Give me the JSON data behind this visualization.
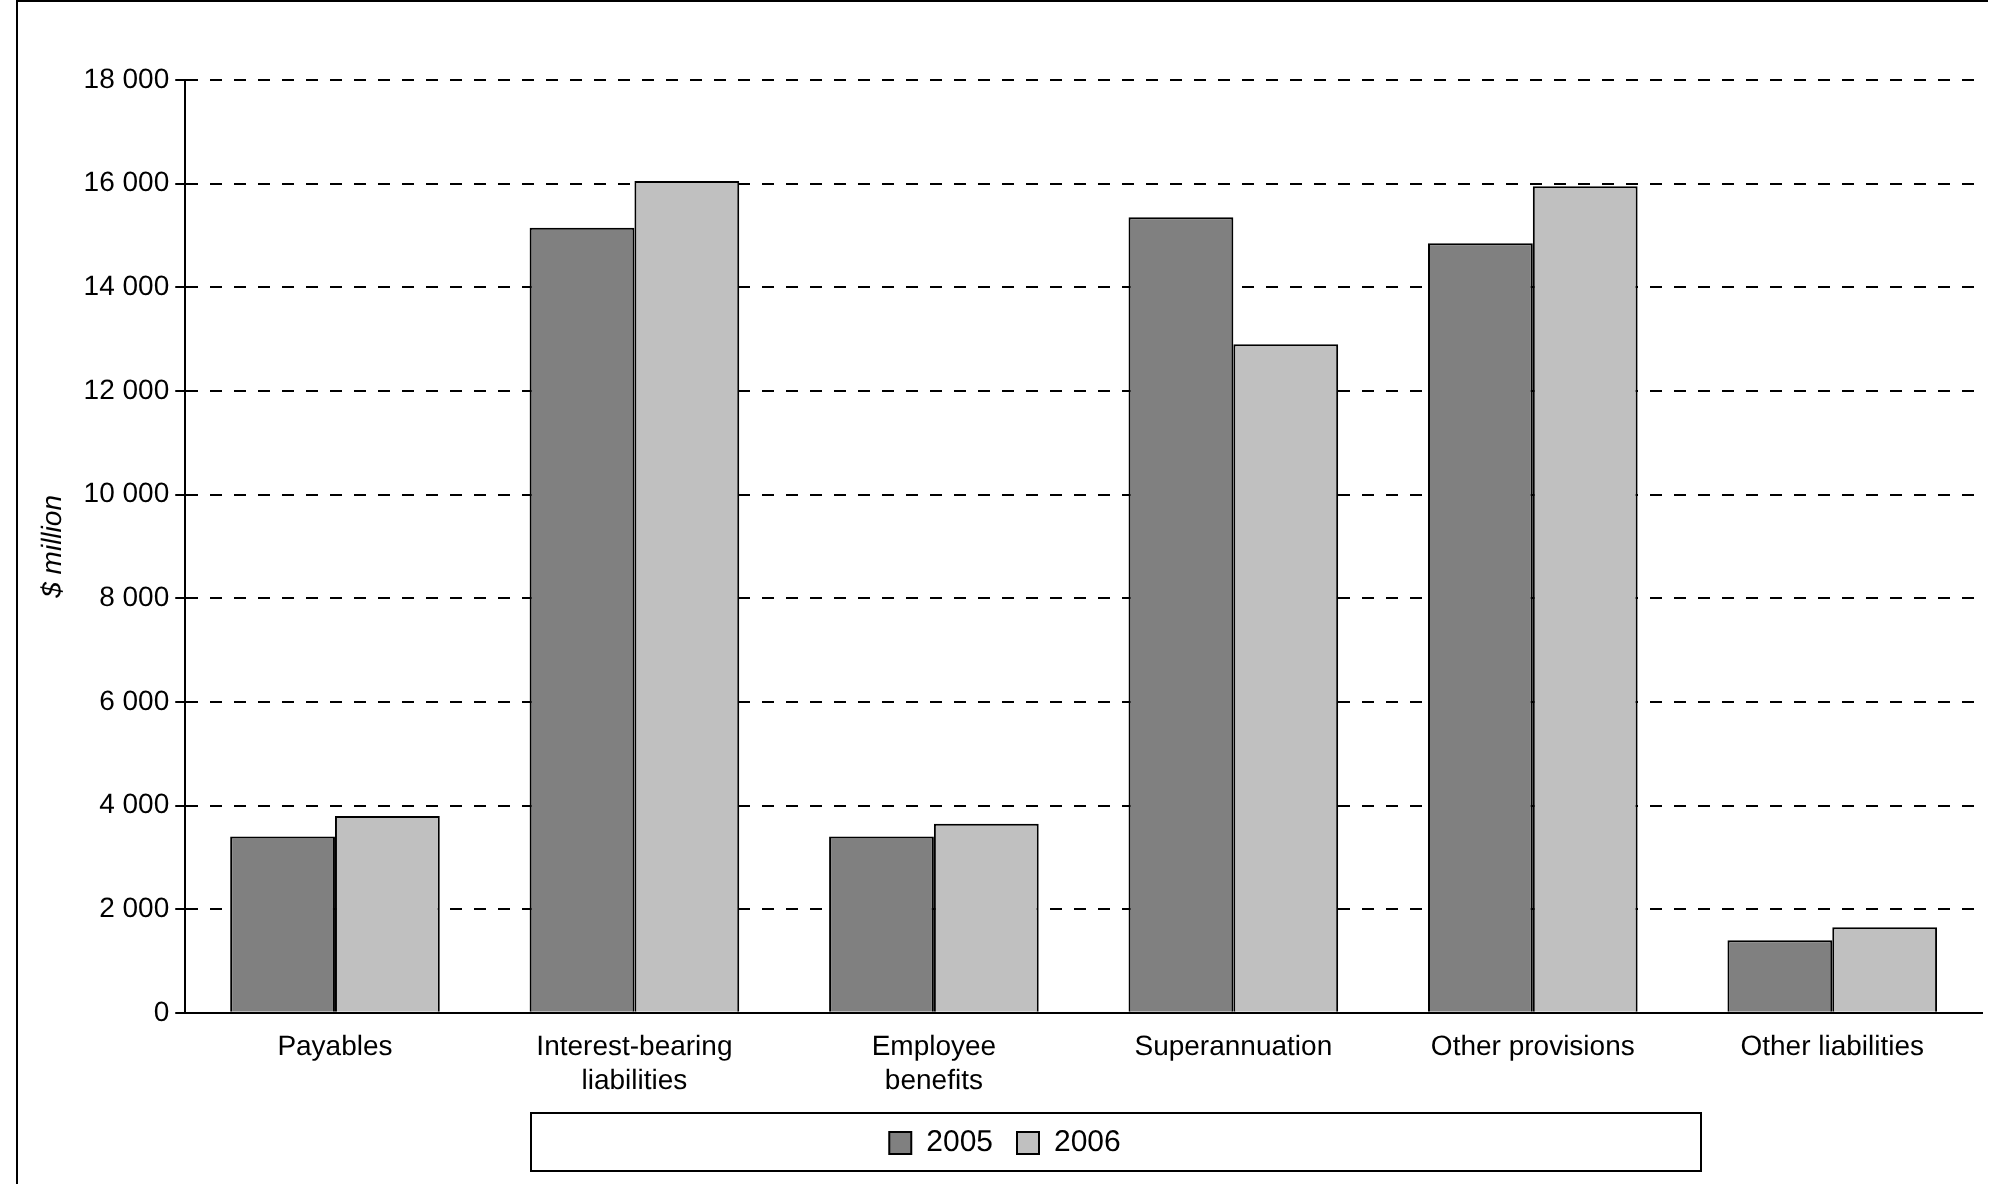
{
  "chart_data": {
    "type": "bar",
    "ylabel": "$ million",
    "categories": [
      "Payables",
      "Interest-bearing liabilities",
      "Employee benefits",
      "Superannuation",
      "Other provisions",
      "Other liabilities"
    ],
    "series": [
      {
        "name": "2005",
        "color": "#808080",
        "values": [
          3400,
          15150,
          3400,
          15350,
          14850,
          1400
        ]
      },
      {
        "name": "2006",
        "color": "#c0c0c0",
        "values": [
          3800,
          16050,
          3650,
          12900,
          15950,
          1650
        ]
      }
    ],
    "ylim": [
      0,
      18000
    ],
    "yticks": [
      {
        "value": 0,
        "label": "0"
      },
      {
        "value": 2000,
        "label": "2 000"
      },
      {
        "value": 4000,
        "label": "4 000"
      },
      {
        "value": 6000,
        "label": "6 000"
      },
      {
        "value": 8000,
        "label": "8 000"
      },
      {
        "value": 10000,
        "label": "10 000"
      },
      {
        "value": 12000,
        "label": "12 000"
      },
      {
        "value": 14000,
        "label": "14 000"
      },
      {
        "value": 16000,
        "label": "16 000"
      },
      {
        "value": 18000,
        "label": "18 000"
      }
    ],
    "grid": "y",
    "legend": "bottom"
  }
}
